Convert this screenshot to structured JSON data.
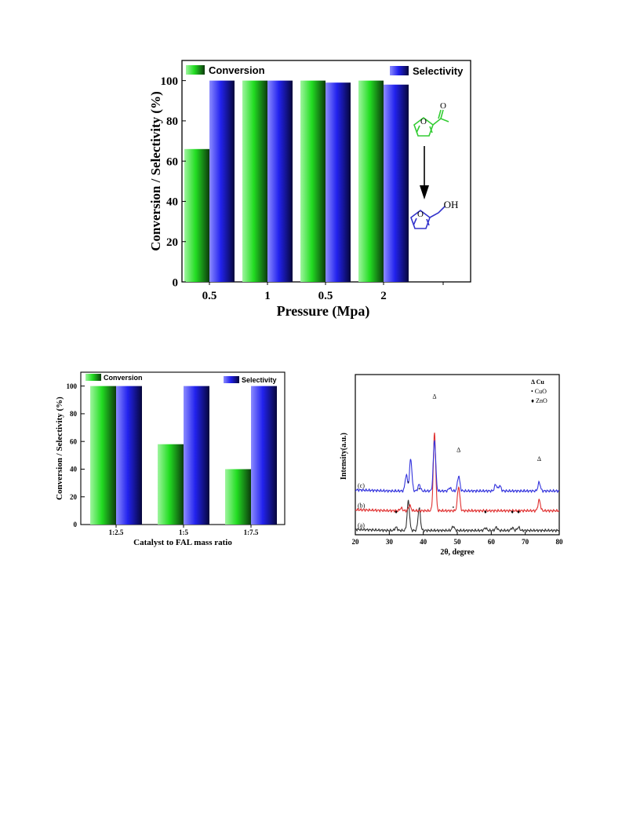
{
  "colors": {
    "conversion": "#22dd22",
    "selectivity": "#2222ee",
    "reactant": "#33cc33",
    "product": "#3333cc",
    "xrd_a": "#333333",
    "xrd_b": "#e03030",
    "xrd_c": "#3333dd"
  },
  "molecules": {
    "reactant_atom": "O",
    "aldehyde_atom": "O",
    "product_ring_atom": "O",
    "product_group": "OH"
  },
  "chart_data": [
    {
      "type": "bar",
      "categories": [
        "0.5",
        "1",
        "0.5",
        "2"
      ],
      "series": [
        {
          "name": "Conversion",
          "values": [
            66,
            100,
            100,
            100
          ]
        },
        {
          "name": "Selectivity",
          "values": [
            100,
            100,
            99,
            98
          ]
        }
      ],
      "xlabel": "Pressure (Mpa)",
      "ylabel": "Conversion / Selectivity (%)",
      "ylim": [
        0,
        110
      ],
      "yticks": [
        0,
        20,
        40,
        60,
        80,
        100
      ],
      "legend": "top"
    },
    {
      "type": "bar",
      "categories": [
        "1:2.5",
        "1:5",
        "1:7.5"
      ],
      "series": [
        {
          "name": "Conversion",
          "values": [
            100,
            58,
            40
          ]
        },
        {
          "name": "Selectivity",
          "values": [
            100,
            100,
            100
          ]
        }
      ],
      "xlabel": "Catalyst to FAL mass ratio",
      "ylabel": "Conversion / Selectivity (%)",
      "ylim": [
        0,
        110
      ],
      "yticks": [
        0,
        20,
        40,
        60,
        80,
        100
      ],
      "legend": "top"
    },
    {
      "type": "line",
      "xlabel": "2θ, degree",
      "ylabel": "Intensity(a.u.)",
      "xlim": [
        20,
        80
      ],
      "xticks": [
        20,
        30,
        40,
        50,
        60,
        70,
        80
      ],
      "series": [
        {
          "name": "(a)",
          "baseline": 0.08,
          "peaks": [
            [
              32.0,
              0.06
            ],
            [
              35.6,
              0.55
            ],
            [
              38.8,
              0.42
            ],
            [
              48.8,
              0.08
            ],
            [
              58.3,
              0.05
            ],
            [
              61.5,
              0.06
            ],
            [
              66.2,
              0.05
            ],
            [
              68.0,
              0.06
            ]
          ]
        },
        {
          "name": "(b)",
          "baseline": 0.45,
          "peaks": [
            [
              33.5,
              0.05
            ],
            [
              36.0,
              0.1
            ],
            [
              43.3,
              1.45
            ],
            [
              50.4,
              0.45
            ],
            [
              74.1,
              0.2
            ]
          ]
        },
        {
          "name": "(c)",
          "baseline": 0.82,
          "peaks": [
            [
              35.0,
              0.3
            ],
            [
              36.3,
              0.6
            ],
            [
              38.8,
              0.12
            ],
            [
              43.3,
              0.95
            ],
            [
              47.8,
              0.06
            ],
            [
              50.4,
              0.28
            ],
            [
              61.3,
              0.12
            ],
            [
              62.5,
              0.1
            ],
            [
              74.1,
              0.16
            ]
          ]
        }
      ],
      "legend": [
        {
          "symbol": "Δ",
          "label": "Cu"
        },
        {
          "symbol": "•",
          "label": "CuO"
        },
        {
          "symbol": "♦",
          "label": "ZnO"
        }
      ],
      "annotations": {
        "cu": [
          {
            "x": 43.3,
            "y": 2.55
          },
          {
            "x": 50.4,
            "y": 1.55
          },
          {
            "x": 74.1,
            "y": 1.38
          }
        ],
        "cuo": [
          {
            "x": 35.6,
            "y": 0.95
          },
          {
            "x": 38.8,
            "y": 0.82
          },
          {
            "x": 48.8,
            "y": 0.48
          }
        ],
        "zno": [
          {
            "x": 32.0,
            "y": 0.4
          },
          {
            "x": 58.3,
            "y": 0.4
          },
          {
            "x": 66.2,
            "y": 0.4
          },
          {
            "x": 68.0,
            "y": 0.4
          }
        ]
      }
    }
  ]
}
